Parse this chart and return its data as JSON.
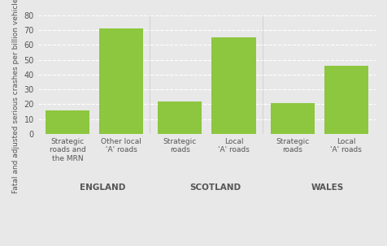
{
  "groups": [
    "ENGLAND",
    "SCOTLAND",
    "WALES"
  ],
  "bar_labels": [
    [
      "Strategic\nroads and\nthe MRN",
      "Other local\n'A' roads"
    ],
    [
      "Strategic\nroads",
      "Local\n'A' roads"
    ],
    [
      "Strategic\nroads",
      "Local\n'A' roads"
    ]
  ],
  "values": [
    [
      16,
      71
    ],
    [
      22,
      65
    ],
    [
      21,
      46
    ]
  ],
  "bar_color": "#8dc63f",
  "background_color": "#e8e8e8",
  "ylabel": "Fatal and adjusted serious crashes per billion vehicle-kilometres",
  "ylim": [
    0,
    80
  ],
  "yticks": [
    0,
    10,
    20,
    30,
    40,
    50,
    60,
    70,
    80
  ],
  "grid_color": "#ffffff",
  "divider_color": "#7a7a7a",
  "group_label_color": "#555555",
  "tick_label_color": "#555555",
  "group_label_fontsize": 7.5,
  "bar_label_fontsize": 6.5,
  "ylabel_fontsize": 6.5,
  "ytick_fontsize": 7
}
